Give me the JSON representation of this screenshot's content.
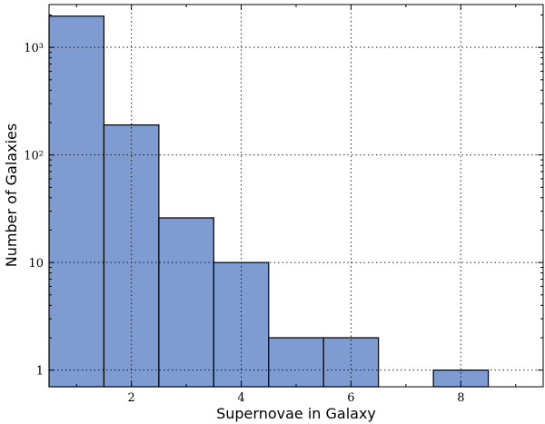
{
  "chart_data": {
    "type": "bar",
    "title": "",
    "xlabel": "Supernovae in Galaxy",
    "ylabel": "Number of Galaxies",
    "xlim": [
      0.5,
      9.5
    ],
    "ylim": [
      0.7,
      2500
    ],
    "yscale": "log",
    "grid": true,
    "bar_color": "#7f9cd2",
    "bins": [
      {
        "x0": 0.5,
        "x1": 1.5,
        "value": 1950
      },
      {
        "x0": 1.5,
        "x1": 2.5,
        "value": 190
      },
      {
        "x0": 2.5,
        "x1": 3.5,
        "value": 26
      },
      {
        "x0": 3.5,
        "x1": 4.5,
        "value": 10
      },
      {
        "x0": 4.5,
        "x1": 5.5,
        "value": 2
      },
      {
        "x0": 5.5,
        "x1": 6.5,
        "value": 2
      },
      {
        "x0": 6.5,
        "x1": 7.5,
        "value": 0
      },
      {
        "x0": 7.5,
        "x1": 8.5,
        "value": 1
      }
    ],
    "x_ticks": [
      {
        "value": 2,
        "label": "2"
      },
      {
        "value": 4,
        "label": "4"
      },
      {
        "value": 6,
        "label": "6"
      },
      {
        "value": 8,
        "label": "8"
      }
    ],
    "y_ticks": [
      {
        "value": 1,
        "label": "1"
      },
      {
        "value": 10,
        "label": "10"
      },
      {
        "value": 100,
        "label": "10²"
      },
      {
        "value": 1000,
        "label": "10³"
      }
    ]
  }
}
